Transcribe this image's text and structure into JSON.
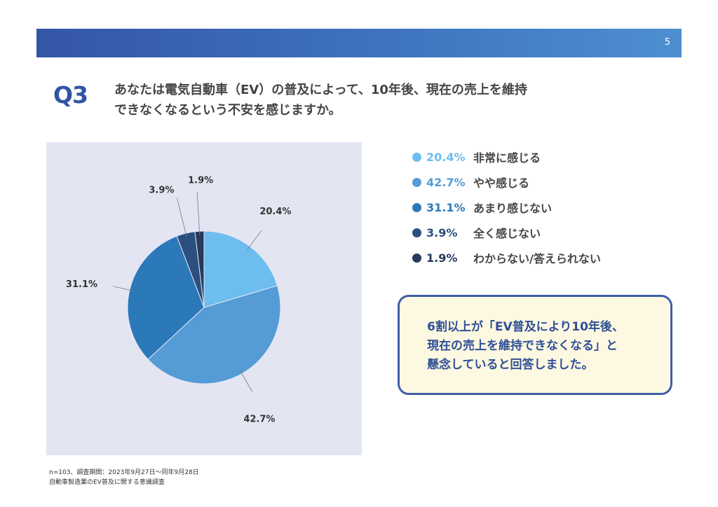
{
  "page": {
    "number": "5"
  },
  "question": {
    "label": "Q3",
    "line1": "あなたは電気自動車（EV）の普及によって、10年後、現在の売上を維持",
    "line2": "できなくなるという不安を感じますか。"
  },
  "chart_data": {
    "type": "pie",
    "title": "",
    "slices": [
      {
        "label": "非常に感じる",
        "value": 20.4,
        "display": "20.4%",
        "color": "#6dbdee"
      },
      {
        "label": "やや感じる",
        "value": 42.7,
        "display": "42.7%",
        "color": "#559bd6"
      },
      {
        "label": "あまり感じない",
        "value": 31.1,
        "display": "31.1%",
        "color": "#2c79b9"
      },
      {
        "label": "全く感じない",
        "value": 3.9,
        "display": "3.9%",
        "color": "#2b4f7e"
      },
      {
        "label": "わからない/答えられない",
        "value": 1.9,
        "display": "1.9%",
        "color": "#263a5c"
      }
    ],
    "legend_position": "right"
  },
  "callout": {
    "line1": "6割以上が「EV普及により10年後、",
    "line2": "現在の売上を維持できなくなる」と",
    "line3": "懸念していると回答しました。"
  },
  "footnote": {
    "line1": "n=103、調査期間：2023年9月27日〜同年9月28日",
    "line2": "自動車製造業のEV普及に関する意識調査"
  }
}
